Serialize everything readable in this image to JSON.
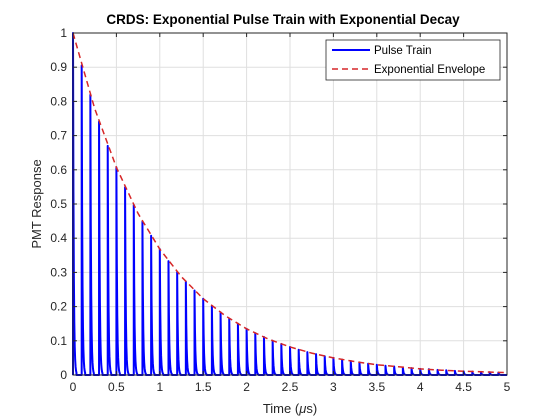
{
  "chart_data": {
    "type": "line",
    "title": "CRDS: Exponential Pulse Train with Exponential Decay",
    "xlabel_prefix": "Time (",
    "xlabel_mu": "μ",
    "xlabel_suffix": "s)",
    "ylabel": "PMT Response",
    "xlim": [
      0,
      5
    ],
    "ylim": [
      0,
      1
    ],
    "xticks": [
      0,
      0.5,
      1,
      1.5,
      2,
      2.5,
      3,
      3.5,
      4,
      4.5,
      5
    ],
    "xtick_labels": [
      "0",
      "0.5",
      "1",
      "1.5",
      "2",
      "2.5",
      "3",
      "3.5",
      "4",
      "4.5",
      "5"
    ],
    "yticks": [
      0,
      0.1,
      0.2,
      0.3,
      0.4,
      0.5,
      0.6,
      0.7,
      0.8,
      0.9,
      1
    ],
    "ytick_labels": [
      "0",
      "0.1",
      "0.2",
      "0.3",
      "0.4",
      "0.5",
      "0.6",
      "0.7",
      "0.8",
      "0.9",
      "1"
    ],
    "grid": true,
    "legend_position": "top-right",
    "series": [
      {
        "name": "Pulse Train",
        "color": "#0000ff",
        "style": "solid",
        "pulse_times": [
          0,
          0.1,
          0.2,
          0.3,
          0.4,
          0.5,
          0.6,
          0.7,
          0.8,
          0.9,
          1.0,
          1.1,
          1.2,
          1.3,
          1.4,
          1.5,
          1.6,
          1.7,
          1.8,
          1.9,
          2.0,
          2.1,
          2.2,
          2.3,
          2.4,
          2.5,
          2.6,
          2.7,
          2.8,
          2.9,
          3.0,
          3.1,
          3.2,
          3.3,
          3.4,
          3.5,
          3.6,
          3.7,
          3.8,
          3.9,
          4.0,
          4.1,
          4.2,
          4.3,
          4.4,
          4.5,
          4.6,
          4.7,
          4.8,
          4.9
        ],
        "pulse_peaks": [
          1.0,
          0.905,
          0.819,
          0.741,
          0.67,
          0.607,
          0.549,
          0.497,
          0.449,
          0.407,
          0.368,
          0.333,
          0.301,
          0.273,
          0.247,
          0.223,
          0.202,
          0.183,
          0.165,
          0.15,
          0.135,
          0.122,
          0.111,
          0.1,
          0.091,
          0.082,
          0.074,
          0.067,
          0.061,
          0.055,
          0.05,
          0.045,
          0.041,
          0.037,
          0.033,
          0.03,
          0.027,
          0.025,
          0.022,
          0.02,
          0.018,
          0.017,
          0.015,
          0.014,
          0.012,
          0.011,
          0.01,
          0.009,
          0.008,
          0.007
        ],
        "pulse_width": 0.04
      },
      {
        "name": "Exponential Envelope",
        "color": "#d62728",
        "style": "dashed",
        "x": [
          0,
          0.25,
          0.5,
          0.75,
          1.0,
          1.25,
          1.5,
          1.75,
          2.0,
          2.25,
          2.5,
          2.75,
          3.0,
          3.25,
          3.5,
          3.75,
          4.0,
          4.25,
          4.5,
          4.75,
          5.0
        ],
        "y": [
          1.0,
          0.779,
          0.607,
          0.472,
          0.368,
          0.287,
          0.223,
          0.174,
          0.135,
          0.105,
          0.082,
          0.064,
          0.05,
          0.039,
          0.03,
          0.024,
          0.018,
          0.014,
          0.011,
          0.009,
          0.007
        ]
      }
    ]
  }
}
